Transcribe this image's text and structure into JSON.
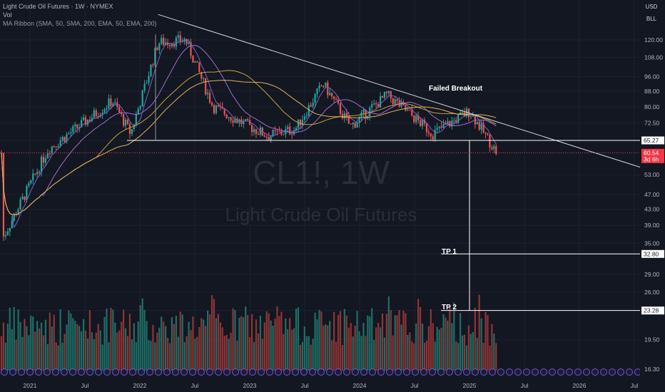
{
  "legend": {
    "title": "Light Crude Oil Futures · 1W · NYMEX",
    "vol": "Vol",
    "ma": "MA Ribbon (SMA, 50, SMA, 200, EMA, 50, EMA, 200)"
  },
  "buttons": {
    "currency": "USD",
    "unit": "BLL"
  },
  "watermark": {
    "symbol": "CL1!, 1W",
    "name": "Light Crude Oil Futures"
  },
  "chart_data": {
    "type": "candlestick",
    "ylim": [
      14.9,
      140
    ],
    "log_scale": true,
    "y_ticks": [
      120.0,
      108.0,
      96.0,
      88.0,
      80.0,
      72.5,
      65.27,
      60.54,
      53.0,
      47.0,
      43.0,
      39.0,
      35.0,
      32.8,
      29.0,
      26.0,
      23.28,
      19.5,
      16.3,
      14.9
    ],
    "x_ticks": [
      "2021",
      "Jul",
      "2022",
      "Jul",
      "2023",
      "Jul",
      "2024",
      "Jul",
      "2025",
      "Jul",
      "2026",
      "Jul"
    ],
    "price_tags": [
      {
        "label": "65.27",
        "value": 65.27,
        "color": "#ffffff"
      },
      {
        "label": "60.54",
        "sub": "3d 6h",
        "value": 60.54,
        "color": "#f23645"
      },
      {
        "label": "32.80",
        "value": 32.8,
        "color": "#ffffff"
      },
      {
        "label": "23.28",
        "value": 23.28,
        "color": "#ffffff"
      }
    ],
    "annotations": [
      {
        "text": "Failed Breakout"
      },
      {
        "text": "TP 1",
        "value": 32.8
      },
      {
        "text": "TP 2",
        "value": 23.28
      }
    ],
    "support_level": 65.27,
    "last_price": 60.54,
    "anchor_price": [
      {
        "date": "2020-10",
        "value": 36
      },
      {
        "date": "2021-03",
        "value": 62
      },
      {
        "date": "2021-07",
        "value": 73
      },
      {
        "date": "2021-10",
        "value": 83
      },
      {
        "date": "2021-12",
        "value": 68
      },
      {
        "date": "2022-03",
        "value": 118
      },
      {
        "date": "2022-06",
        "value": 120
      },
      {
        "date": "2022-09",
        "value": 80
      },
      {
        "date": "2022-12",
        "value": 73
      },
      {
        "date": "2023-03",
        "value": 67
      },
      {
        "date": "2023-06",
        "value": 70
      },
      {
        "date": "2023-09",
        "value": 92
      },
      {
        "date": "2023-12",
        "value": 71
      },
      {
        "date": "2024-04",
        "value": 86
      },
      {
        "date": "2024-09",
        "value": 68
      },
      {
        "date": "2025-01",
        "value": 78
      },
      {
        "date": "2025-04",
        "value": 60.5
      }
    ]
  },
  "colors": {
    "up": "#26a69a",
    "down": "#ef5350",
    "vol_up": "#1e6f66",
    "vol_down": "#8f3535",
    "sma50": "#7b61c8",
    "sma200": "#c8a040",
    "trend": "#d1d4dc",
    "last": "#f23645"
  }
}
